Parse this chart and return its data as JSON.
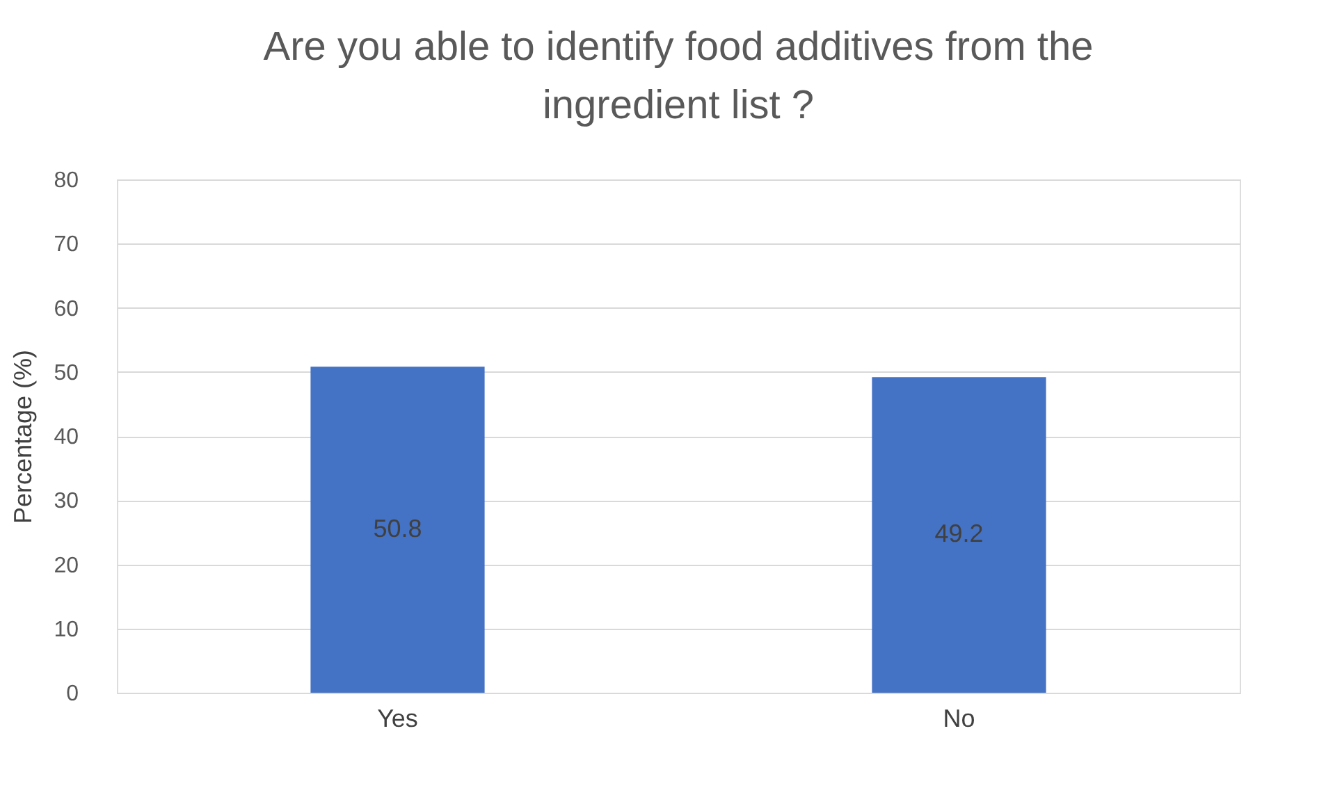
{
  "chart_data": {
    "type": "bar",
    "title": "Are you able to identify food additives from the ingredient list ?",
    "ylabel": "Percentage (%)",
    "categories": [
      "Yes",
      "No"
    ],
    "values": [
      50.8,
      49.2
    ],
    "color": "#4472c4",
    "ylim": [
      0,
      80
    ],
    "yticks": [
      0,
      10,
      20,
      30,
      40,
      50,
      60,
      70,
      80
    ],
    "grid": "y",
    "data_labels": true
  }
}
